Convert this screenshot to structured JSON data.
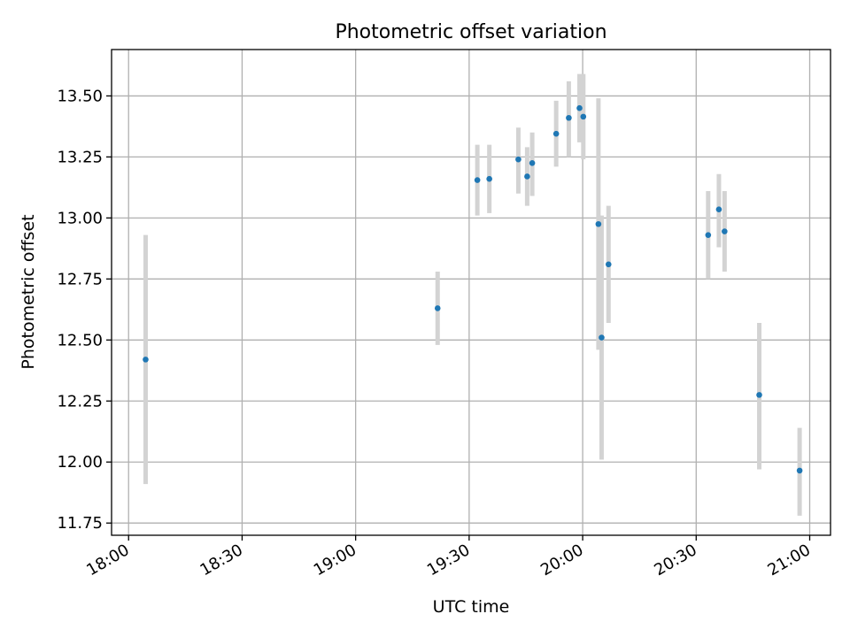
{
  "chart_data": {
    "type": "scatter",
    "title": "Photometric offset variation",
    "xlabel": "UTC time",
    "ylabel": "Photometric offset",
    "x_ticks": [
      "18:00",
      "18:30",
      "19:00",
      "19:30",
      "20:00",
      "20:30",
      "21:00"
    ],
    "y_ticks": [
      "11.75",
      "12.00",
      "12.25",
      "12.50",
      "12.75",
      "13.00",
      "13.25",
      "13.50"
    ],
    "xlim": [
      "17:55:30",
      "21:05:30"
    ],
    "ylim": [
      11.7,
      13.69
    ],
    "grid": true,
    "colors": {
      "marker": "#1f77b4",
      "errorbar": "#d3d3d3",
      "grid": "#b0b0b0"
    },
    "points": [
      {
        "x": "18:04:30",
        "y": 12.42,
        "yerr_low": 11.91,
        "yerr_high": 12.93
      },
      {
        "x": "19:21:40",
        "y": 12.63,
        "yerr_low": 12.48,
        "yerr_high": 12.78
      },
      {
        "x": "19:32:10",
        "y": 13.155,
        "yerr_low": 13.01,
        "yerr_high": 13.3
      },
      {
        "x": "19:35:20",
        "y": 13.16,
        "yerr_low": 13.02,
        "yerr_high": 13.3
      },
      {
        "x": "19:43:00",
        "y": 13.24,
        "yerr_low": 13.1,
        "yerr_high": 13.37
      },
      {
        "x": "19:45:20",
        "y": 13.17,
        "yerr_low": 13.05,
        "yerr_high": 13.29
      },
      {
        "x": "19:46:40",
        "y": 13.225,
        "yerr_low": 13.09,
        "yerr_high": 13.35
      },
      {
        "x": "19:53:00",
        "y": 13.345,
        "yerr_low": 13.21,
        "yerr_high": 13.48
      },
      {
        "x": "19:56:20",
        "y": 13.41,
        "yerr_low": 13.25,
        "yerr_high": 13.56
      },
      {
        "x": "19:59:10",
        "y": 13.45,
        "yerr_low": 13.31,
        "yerr_high": 13.59
      },
      {
        "x": "20:00:10",
        "y": 13.415,
        "yerr_low": 13.24,
        "yerr_high": 13.59
      },
      {
        "x": "20:04:10",
        "y": 12.975,
        "yerr_low": 12.46,
        "yerr_high": 13.49
      },
      {
        "x": "20:05:00",
        "y": 12.51,
        "yerr_low": 12.01,
        "yerr_high": 13.01
      },
      {
        "x": "20:06:50",
        "y": 12.81,
        "yerr_low": 12.57,
        "yerr_high": 13.05
      },
      {
        "x": "20:33:10",
        "y": 12.93,
        "yerr_low": 12.75,
        "yerr_high": 13.11
      },
      {
        "x": "20:36:00",
        "y": 13.035,
        "yerr_low": 12.88,
        "yerr_high": 13.18
      },
      {
        "x": "20:37:30",
        "y": 12.945,
        "yerr_low": 12.78,
        "yerr_high": 13.11
      },
      {
        "x": "20:46:40",
        "y": 12.275,
        "yerr_low": 11.97,
        "yerr_high": 12.57
      },
      {
        "x": "20:57:20",
        "y": 11.965,
        "yerr_low": 11.78,
        "yerr_high": 12.14
      }
    ]
  }
}
